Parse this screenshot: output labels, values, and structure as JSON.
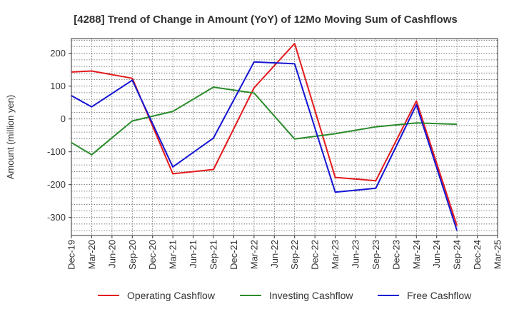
{
  "chart_data": {
    "type": "line",
    "title": "[4288]  Trend of Change in Amount (YoY) of 12Mo Moving Sum of Cashflows",
    "xlabel": "",
    "ylabel": "Amount (million yen)",
    "ylim": [
      -355,
      245
    ],
    "yticks": [
      200,
      100,
      0,
      -100,
      -200,
      -300
    ],
    "ytick_labels": [
      "200",
      "100",
      "0",
      "-100",
      "-200",
      "-300"
    ],
    "grid": true,
    "legend_position": "bottom",
    "categories": [
      "Dec-19",
      "Mar-20",
      "Jun-20",
      "Sep-20",
      "Dec-20",
      "Mar-21",
      "Jun-21",
      "Sep-21",
      "Dec-21",
      "Mar-22",
      "Jun-22",
      "Sep-22",
      "Dec-22",
      "Mar-23",
      "Jun-23",
      "Sep-23",
      "Dec-23",
      "Mar-24",
      "Jun-24",
      "Sep-24",
      "Dec-24",
      "Mar-25"
    ],
    "series": [
      {
        "name": "Operating Cashflow",
        "color": "#e41a1c",
        "values": [
          143,
          146,
          null,
          124,
          null,
          -167,
          null,
          -154,
          null,
          95,
          null,
          230,
          null,
          -178,
          null,
          -188,
          null,
          55,
          null,
          -325,
          null,
          null
        ]
      },
      {
        "name": "Investing Cashflow",
        "color": "#2a8c2a",
        "values": [
          -72,
          -109,
          null,
          -6,
          null,
          23,
          null,
          97,
          null,
          79,
          null,
          -61,
          null,
          -45,
          null,
          -24,
          null,
          -12,
          null,
          -16,
          null,
          null
        ]
      },
      {
        "name": "Free Cashflow",
        "color": "#1414d4",
        "values": [
          71,
          37,
          null,
          118,
          null,
          -146,
          null,
          -58,
          null,
          174,
          null,
          168,
          null,
          -223,
          null,
          -211,
          null,
          43,
          null,
          -340,
          null,
          null
        ]
      }
    ]
  }
}
